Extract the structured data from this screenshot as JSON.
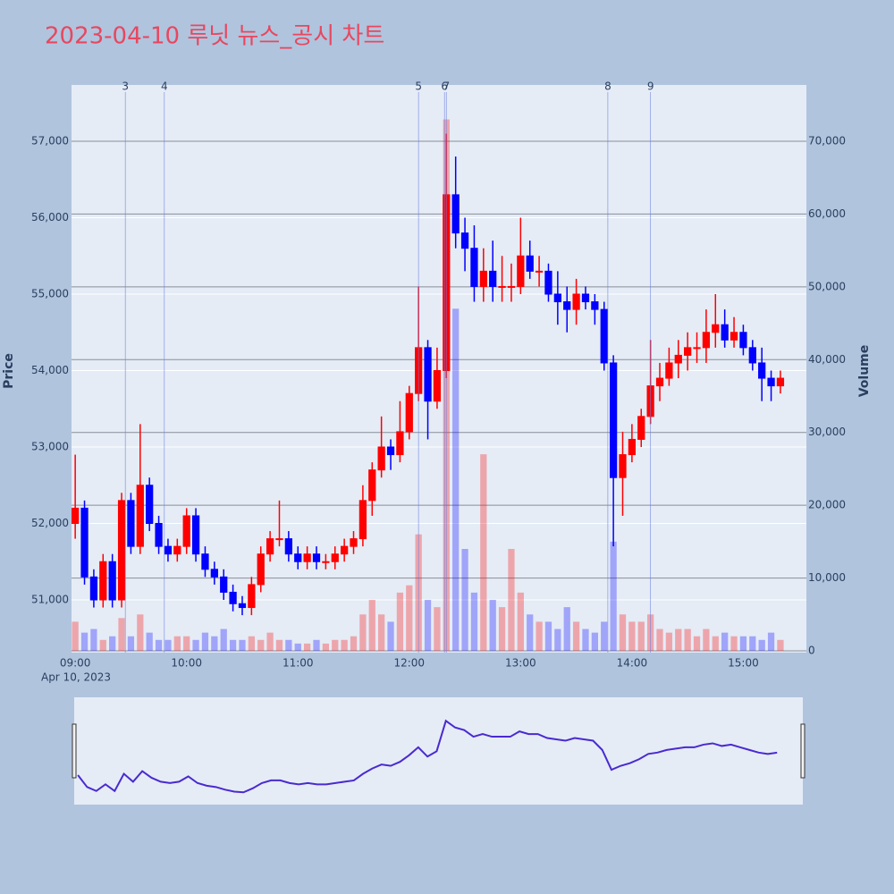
{
  "chart_data": {
    "type": "candlestick",
    "title": "2023-04-10 루닛 뉴스_공시 차트",
    "y_label": "Price",
    "y2_label": "Volume",
    "x_date_label": "Apr 10, 2023",
    "up_color": "#ff0000",
    "down_color": "#0000ff",
    "xlim": [
      "08:58",
      "15:34"
    ],
    "xticks": [
      "09:00",
      "10:00",
      "11:00",
      "12:00",
      "13:00",
      "14:00",
      "15:00"
    ],
    "ylim": [
      50310,
      57737
    ],
    "yticks": [
      {
        "value": 51000,
        "label": "51,000"
      },
      {
        "value": 52000,
        "label": "52,000"
      },
      {
        "value": 53000,
        "label": "53,000"
      },
      {
        "value": 54000,
        "label": "54,000"
      },
      {
        "value": 55000,
        "label": "55,000"
      },
      {
        "value": 56000,
        "label": "56,000"
      },
      {
        "value": 57000,
        "label": "57,000"
      }
    ],
    "y2lim": [
      -246,
      77737
    ],
    "y2ticks": [
      0,
      {
        "value": 10000,
        "label": "10,000"
      },
      {
        "value": 20000,
        "label": "20,000"
      },
      {
        "value": 30000,
        "label": "30,000"
      },
      {
        "value": 40000,
        "label": "40,000"
      },
      {
        "value": 50000,
        "label": "50,000"
      },
      {
        "value": 60000,
        "label": "60,000"
      },
      {
        "value": 70000,
        "label": "70,000"
      }
    ],
    "annotations": [
      {
        "x": "09:27",
        "label": "3"
      },
      {
        "x": "09:48",
        "label": "4"
      },
      {
        "x": "12:05",
        "label": "5"
      },
      {
        "x": "12:19",
        "label": "6"
      },
      {
        "x": "12:20",
        "label": "7"
      },
      {
        "x": "13:47",
        "label": "8"
      },
      {
        "x": "14:10",
        "label": "9"
      }
    ],
    "x": [
      "09:00",
      "09:05",
      "09:10",
      "09:15",
      "09:20",
      "09:25",
      "09:30",
      "09:35",
      "09:40",
      "09:45",
      "09:50",
      "09:55",
      "10:00",
      "10:05",
      "10:10",
      "10:15",
      "10:20",
      "10:25",
      "10:30",
      "10:35",
      "10:40",
      "10:45",
      "10:50",
      "10:55",
      "11:00",
      "11:05",
      "11:10",
      "11:15",
      "11:20",
      "11:25",
      "11:30",
      "11:35",
      "11:40",
      "11:45",
      "11:50",
      "11:55",
      "12:00",
      "12:05",
      "12:10",
      "12:15",
      "12:20",
      "12:25",
      "12:30",
      "12:35",
      "12:40",
      "12:45",
      "12:50",
      "12:55",
      "13:00",
      "13:05",
      "13:10",
      "13:15",
      "13:20",
      "13:25",
      "13:30",
      "13:35",
      "13:40",
      "13:45",
      "13:50",
      "13:55",
      "14:00",
      "14:05",
      "14:10",
      "14:15",
      "14:20",
      "14:25",
      "14:30",
      "14:35",
      "14:40",
      "14:45",
      "14:50",
      "14:55",
      "15:00",
      "15:05",
      "15:10",
      "15:15",
      "15:20"
    ],
    "open": [
      52000,
      52200,
      51300,
      51000,
      51500,
      51000,
      52300,
      51700,
      52500,
      52000,
      51700,
      51600,
      51700,
      52100,
      51600,
      51400,
      51300,
      51100,
      50950,
      50900,
      51200,
      51600,
      51800,
      51800,
      51600,
      51500,
      51600,
      51500,
      51500,
      51600,
      51700,
      51800,
      52300,
      52700,
      53000,
      52900,
      53200,
      53700,
      54300,
      53600,
      54000,
      56300,
      55800,
      55600,
      55100,
      55300,
      55100,
      55100,
      55100,
      55500,
      55300,
      55300,
      55000,
      54900,
      54800,
      55000,
      54900,
      54800,
      54100,
      52600,
      52900,
      53100,
      53400,
      53800,
      53900,
      54100,
      54200,
      54300,
      54300,
      54500,
      54600,
      54400,
      54500,
      54300,
      54100,
      53900,
      53800
    ],
    "high": [
      52900,
      52300,
      51400,
      51600,
      51600,
      52400,
      52400,
      53300,
      52600,
      52100,
      51800,
      51800,
      52200,
      52200,
      51700,
      51500,
      51400,
      51200,
      51050,
      51300,
      51700,
      51900,
      52300,
      51900,
      51700,
      51700,
      51700,
      51600,
      51700,
      51800,
      51900,
      52500,
      52800,
      53400,
      53100,
      53600,
      53800,
      55100,
      54400,
      54300,
      57100,
      56800,
      56000,
      55900,
      55600,
      55700,
      55500,
      55400,
      56000,
      55700,
      55500,
      55400,
      55300,
      55100,
      55200,
      55100,
      55000,
      54900,
      54200,
      53200,
      53300,
      53500,
      54400,
      54100,
      54300,
      54400,
      54500,
      54500,
      54800,
      55000,
      54800,
      54700,
      54600,
      54400,
      54300,
      54000,
      54000
    ],
    "low": [
      51800,
      51200,
      50900,
      50900,
      50900,
      50900,
      51600,
      51600,
      51900,
      51600,
      51500,
      51500,
      51600,
      51500,
      51300,
      51200,
      51000,
      50850,
      50800,
      50800,
      51100,
      51500,
      51700,
      51500,
      51400,
      51400,
      51400,
      51400,
      51400,
      51500,
      51600,
      51700,
      52100,
      52600,
      52700,
      52800,
      53100,
      53600,
      53100,
      53500,
      53900,
      55600,
      55300,
      54900,
      54900,
      54900,
      54900,
      54900,
      55000,
      55200,
      55100,
      54900,
      54600,
      54500,
      54600,
      54800,
      54600,
      54000,
      51700,
      52100,
      52800,
      53000,
      53300,
      53600,
      53800,
      53900,
      54000,
      54100,
      54100,
      54300,
      54300,
      54300,
      54200,
      54000,
      53600,
      53600,
      53700
    ],
    "close": [
      52200,
      51300,
      51000,
      51500,
      51000,
      52300,
      51700,
      52500,
      52000,
      51700,
      51600,
      51700,
      52100,
      51600,
      51400,
      51300,
      51100,
      50950,
      50900,
      51200,
      51600,
      51800,
      51800,
      51600,
      51500,
      51600,
      51500,
      51500,
      51600,
      51700,
      51800,
      52300,
      52700,
      53000,
      52900,
      53200,
      53700,
      54300,
      53600,
      54000,
      56300,
      55800,
      55600,
      55100,
      55300,
      55100,
      55100,
      55100,
      55500,
      55300,
      55300,
      55000,
      54900,
      54800,
      55000,
      54900,
      54800,
      54100,
      52600,
      52900,
      53100,
      53400,
      53800,
      53900,
      54100,
      54200,
      54300,
      54300,
      54500,
      54600,
      54400,
      54500,
      54300,
      54100,
      53900,
      53800,
      53900
    ],
    "volume": [
      4000,
      2500,
      3000,
      1500,
      2000,
      4500,
      2000,
      5000,
      2500,
      1500,
      1500,
      2000,
      2000,
      1500,
      2500,
      2000,
      3000,
      1500,
      1500,
      2000,
      1500,
      2500,
      1500,
      1500,
      1000,
      1000,
      1500,
      1000,
      1500,
      1500,
      2000,
      5000,
      7000,
      5000,
      4000,
      8000,
      9000,
      16000,
      7000,
      6000,
      73000,
      47000,
      14000,
      8000,
      27000,
      7000,
      6000,
      14000,
      8000,
      5000,
      4000,
      4000,
      3000,
      6000,
      4000,
      3000,
      2500,
      4000,
      15000,
      5000,
      4000,
      4000,
      5000,
      3000,
      2500,
      3000,
      3000,
      2000,
      3000,
      2000,
      2500,
      2000,
      2000,
      2000,
      1500,
      2500,
      1500
    ]
  }
}
